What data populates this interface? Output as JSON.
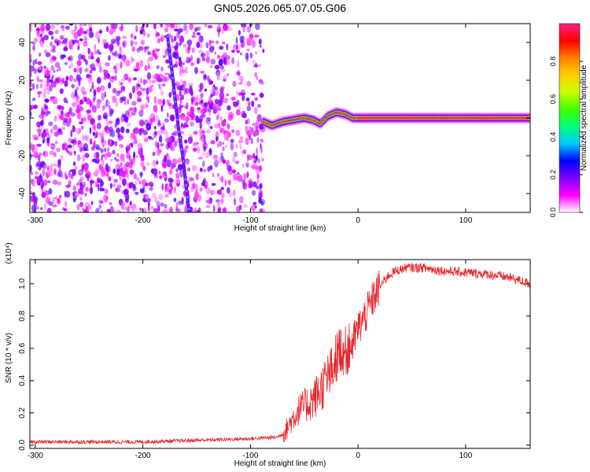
{
  "chart_data": [
    {
      "type": "heatmap",
      "title": "GN05.2026.065.07.05.G06",
      "xlabel": "Height of straight line (km)",
      "ylabel": "Frequency (Hz)",
      "xlim": [
        -305,
        160
      ],
      "ylim": [
        -50,
        50
      ],
      "xticks": [
        -300,
        -200,
        -100,
        0,
        100
      ],
      "yticks": [
        -40,
        -20,
        0,
        20,
        40
      ],
      "colorbar": {
        "label": "Normalized spectral amplitude",
        "range": [
          0,
          1
        ],
        "ticks": [
          0.0,
          0.2,
          0.4,
          0.6,
          0.8
        ],
        "colormap": [
          "#ffffff",
          "#ff00ff",
          "#7f00ff",
          "#0000ff",
          "#00c8ff",
          "#00ff80",
          "#40ff00",
          "#c8ff00",
          "#ffd000",
          "#ff8000",
          "#ff0000",
          "#ff2080"
        ]
      },
      "features": {
        "noise_region_x": [
          -305,
          -88
        ],
        "steep_track": [
          {
            "x": -177,
            "y": 43
          },
          {
            "x": -173,
            "y": 25
          },
          {
            "x": -170,
            "y": 10
          },
          {
            "x": -167,
            "y": -5
          },
          {
            "x": -163,
            "y": -20
          },
          {
            "x": -160,
            "y": -35
          },
          {
            "x": -157,
            "y": -50
          }
        ],
        "ridge": [
          {
            "x": -88,
            "y": -2
          },
          {
            "x": -80,
            "y": -4
          },
          {
            "x": -70,
            "y": -2
          },
          {
            "x": -60,
            "y": -1
          },
          {
            "x": -50,
            "y": 0
          },
          {
            "x": -42,
            "y": -1
          },
          {
            "x": -35,
            "y": -3
          },
          {
            "x": -28,
            "y": 1
          },
          {
            "x": -20,
            "y": 3
          },
          {
            "x": -12,
            "y": 2
          },
          {
            "x": -5,
            "y": 0
          },
          {
            "x": 10,
            "y": 0
          },
          {
            "x": 160,
            "y": 0
          }
        ]
      }
    },
    {
      "type": "line",
      "xlabel": "Height of straight line (km)",
      "ylabel": "SNR (10 * v/v)",
      "yscale_label": "(x10⁴)",
      "xlim": [
        -305,
        160
      ],
      "ylim": [
        -0.02,
        1.15
      ],
      "xticks": [
        -300,
        -200,
        -100,
        0,
        100
      ],
      "yticks": [
        "0.0",
        "0.2",
        "0.4",
        "0.6",
        "0.8",
        "1.0"
      ],
      "line_color": "#e8262b",
      "series": [
        {
          "name": "SNR",
          "x": [
            -305,
            -250,
            -200,
            -150,
            -100,
            -75,
            -68,
            -62,
            -55,
            -48,
            -42,
            -36,
            -30,
            -25,
            -20,
            -16,
            -12,
            -8,
            -4,
            0,
            8,
            15,
            22,
            28,
            35,
            45,
            60,
            80,
            100,
            120,
            140,
            160
          ],
          "y": [
            0.02,
            0.02,
            0.02,
            0.03,
            0.04,
            0.05,
            0.08,
            0.15,
            0.22,
            0.25,
            0.28,
            0.33,
            0.4,
            0.45,
            0.55,
            0.6,
            0.58,
            0.6,
            0.65,
            0.72,
            0.82,
            0.92,
            1.0,
            1.05,
            1.08,
            1.1,
            1.1,
            1.08,
            1.07,
            1.06,
            1.04,
            1.0
          ]
        }
      ]
    }
  ]
}
